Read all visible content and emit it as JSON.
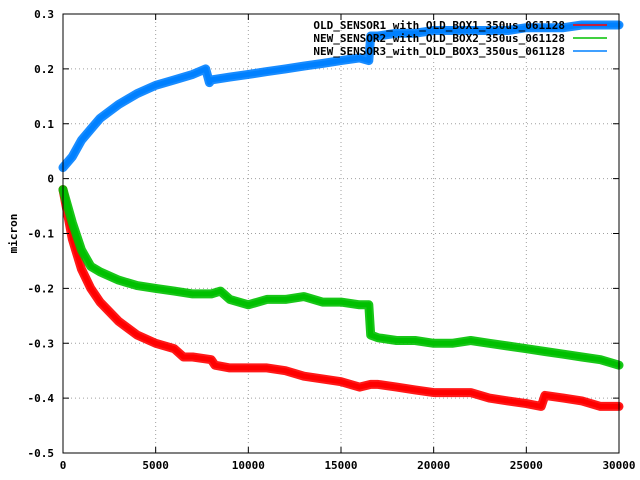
{
  "chart_data": {
    "type": "line",
    "xlabel": "",
    "ylabel": "micron",
    "xlim": [
      0,
      30000
    ],
    "ylim": [
      -0.5,
      0.3
    ],
    "x_ticks": [
      0,
      5000,
      10000,
      15000,
      20000,
      25000,
      30000
    ],
    "x_tick_labels": [
      "0",
      "5000",
      "10000",
      "15000",
      "20000",
      "25000",
      "30000"
    ],
    "y_ticks": [
      -0.5,
      -0.4,
      -0.3,
      -0.2,
      -0.1,
      0,
      0.1,
      0.2,
      0.3
    ],
    "y_tick_labels": [
      "-0.5",
      "-0.4",
      "-0.3",
      "-0.2",
      "-0.1",
      "0",
      "0.1",
      "0.2",
      "0.3"
    ],
    "grid": true,
    "legend_position": "top-right",
    "series": [
      {
        "name": "OLD_SENSOR1_with_OLD_BOX1_350us_061128",
        "color": "#ff0000",
        "x": [
          0,
          500,
          1000,
          1500,
          2000,
          3000,
          4000,
          5000,
          6000,
          6500,
          7000,
          8000,
          8200,
          9000,
          10000,
          11000,
          12000,
          13000,
          14000,
          15000,
          16000,
          16600,
          17000,
          18000,
          19000,
          20000,
          21000,
          22000,
          23000,
          24000,
          25000,
          25800,
          26000,
          27000,
          28000,
          29000,
          30000
        ],
        "y": [
          -0.02,
          -0.11,
          -0.165,
          -0.2,
          -0.225,
          -0.26,
          -0.285,
          -0.3,
          -0.31,
          -0.325,
          -0.325,
          -0.33,
          -0.34,
          -0.345,
          -0.345,
          -0.345,
          -0.35,
          -0.36,
          -0.365,
          -0.37,
          -0.38,
          -0.375,
          -0.375,
          -0.38,
          -0.385,
          -0.39,
          -0.39,
          -0.39,
          -0.4,
          -0.405,
          -0.41,
          -0.415,
          -0.395,
          -0.4,
          -0.405,
          -0.415,
          -0.415
        ]
      },
      {
        "name": "NEW_SENSOR2_with_OLD_BOX2_350us_061128",
        "color": "#00c000",
        "x": [
          0,
          500,
          1000,
          1500,
          2000,
          3000,
          4000,
          5000,
          6000,
          7000,
          8000,
          8500,
          9000,
          10000,
          11000,
          12000,
          13000,
          14000,
          15000,
          16000,
          16500,
          16600,
          17000,
          18000,
          19000,
          20000,
          21000,
          22000,
          23000,
          24000,
          25000,
          26000,
          27000,
          28000,
          29000,
          30000
        ],
        "y": [
          -0.02,
          -0.08,
          -0.13,
          -0.16,
          -0.17,
          -0.185,
          -0.195,
          -0.2,
          -0.205,
          -0.21,
          -0.21,
          -0.205,
          -0.22,
          -0.23,
          -0.22,
          -0.22,
          -0.215,
          -0.225,
          -0.225,
          -0.23,
          -0.23,
          -0.285,
          -0.29,
          -0.295,
          -0.295,
          -0.3,
          -0.3,
          -0.295,
          -0.3,
          -0.305,
          -0.31,
          -0.315,
          -0.32,
          -0.325,
          -0.33,
          -0.34
        ]
      },
      {
        "name": "NEW_SENSOR3_with_OLD_BOX3_350us_061128",
        "color": "#0080ff",
        "x": [
          0,
          500,
          1000,
          1500,
          2000,
          3000,
          4000,
          5000,
          6000,
          7000,
          7700,
          7900,
          8000,
          9000,
          10000,
          11000,
          12000,
          13000,
          14000,
          15000,
          16000,
          16500,
          16600,
          17000,
          18000,
          19000,
          20000,
          21000,
          22000,
          23000,
          24000,
          25000,
          26000,
          27000,
          28000,
          29000,
          30000
        ],
        "y": [
          0.02,
          0.04,
          0.07,
          0.09,
          0.11,
          0.135,
          0.155,
          0.17,
          0.18,
          0.19,
          0.2,
          0.175,
          0.18,
          0.185,
          0.19,
          0.195,
          0.2,
          0.205,
          0.21,
          0.215,
          0.22,
          0.215,
          0.26,
          0.26,
          0.265,
          0.265,
          0.27,
          0.27,
          0.27,
          0.27,
          0.27,
          0.275,
          0.275,
          0.275,
          0.28,
          0.28,
          0.28
        ]
      }
    ]
  }
}
